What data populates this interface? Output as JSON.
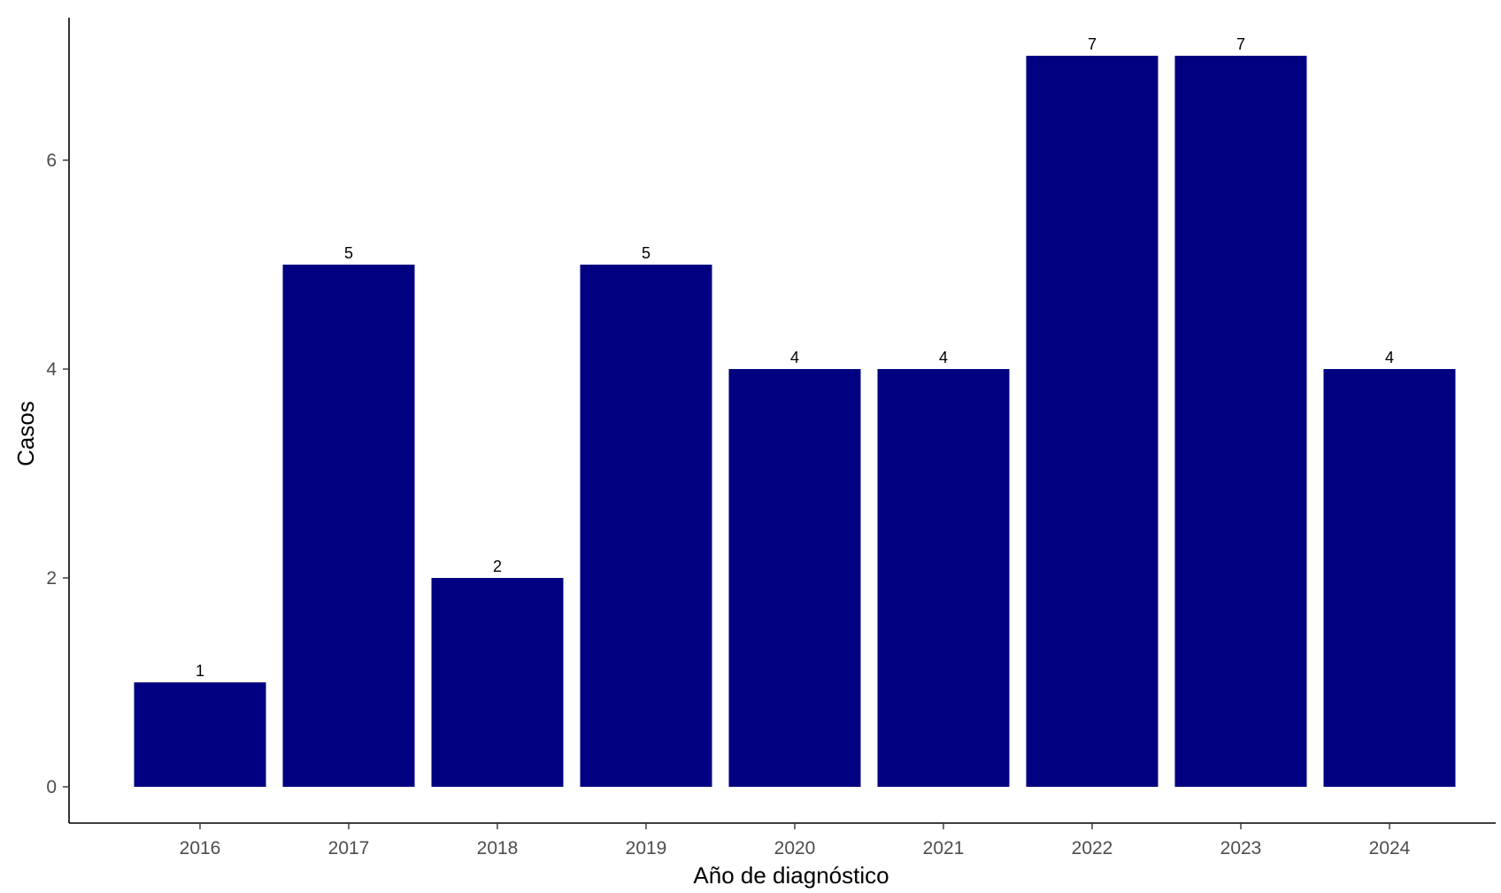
{
  "chart_data": {
    "type": "bar",
    "title": "",
    "xlabel": "Año de diagnóstico",
    "ylabel": "Casos",
    "categories": [
      "2016",
      "2017",
      "2018",
      "2019",
      "2020",
      "2021",
      "2022",
      "2023",
      "2024"
    ],
    "values": [
      1,
      5,
      2,
      5,
      4,
      4,
      7,
      7,
      4
    ],
    "data_labels": [
      "1",
      "5",
      "2",
      "5",
      "4",
      "4",
      "7",
      "7",
      "4"
    ],
    "y_ticks": [
      "0",
      "2",
      "4",
      "6"
    ],
    "ylim": [
      0,
      7
    ],
    "grid": false,
    "legend": "none",
    "bar_color": "#000080"
  }
}
